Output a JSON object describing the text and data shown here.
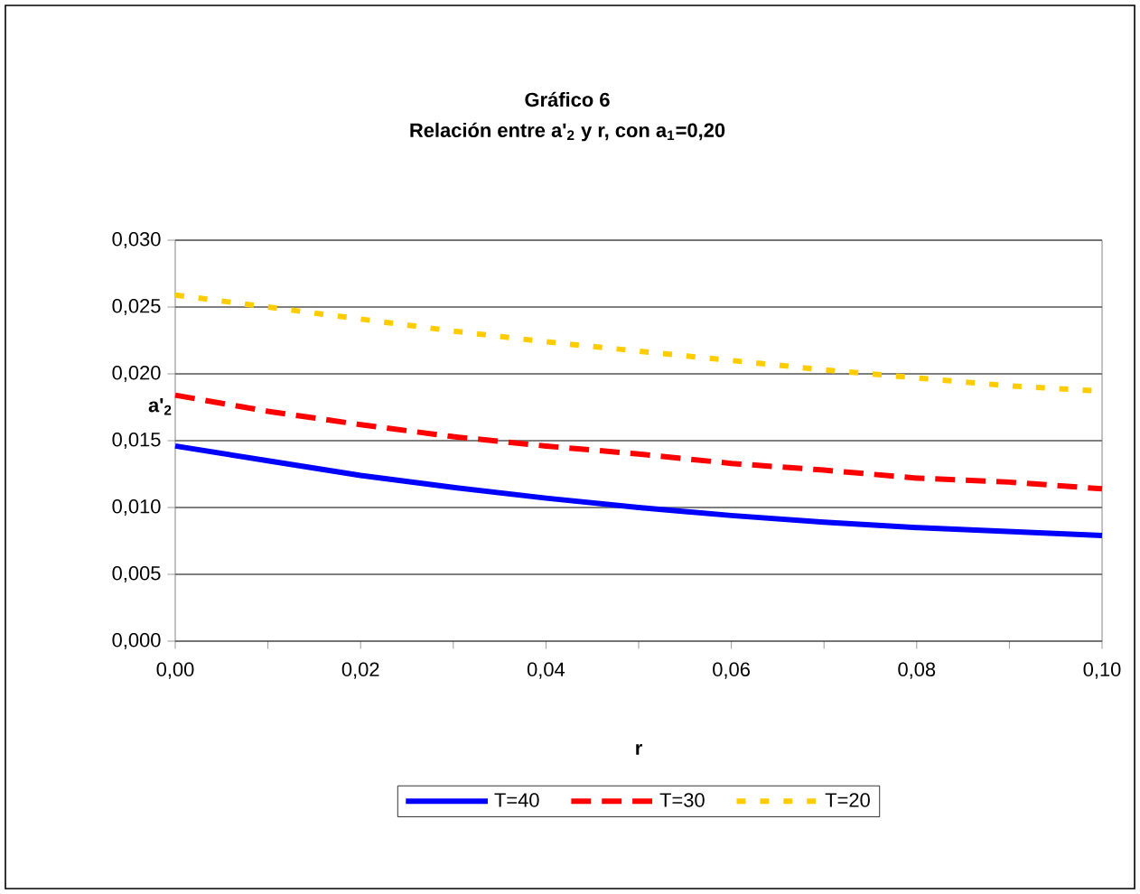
{
  "chart_data": {
    "type": "line",
    "title": "Gráfico 6",
    "subtitle": "Relación entre a'$_{2}$ y r, con a$_{1}$=0,20",
    "xlabel": "r",
    "ylabel": "a'$_{2}$",
    "x": [
      0.0,
      0.01,
      0.02,
      0.03,
      0.04,
      0.05,
      0.06,
      0.07,
      0.08,
      0.09,
      0.1
    ],
    "series": [
      {
        "name": "T=40",
        "color": "#0000ff",
        "line_style": "solid",
        "values": [
          0.0146,
          0.0135,
          0.0124,
          0.0115,
          0.0107,
          0.01,
          0.0094,
          0.0089,
          0.0085,
          0.0082,
          0.0079
        ]
      },
      {
        "name": "T=30",
        "color": "#ff0000",
        "line_style": "dashed",
        "values": [
          0.0184,
          0.0172,
          0.0162,
          0.0153,
          0.0146,
          0.014,
          0.0133,
          0.0128,
          0.0122,
          0.0119,
          0.0114
        ]
      },
      {
        "name": "T=20",
        "color": "#ffcc00",
        "line_style": "dotted",
        "values": [
          0.0259,
          0.025,
          0.0241,
          0.0232,
          0.0224,
          0.0217,
          0.021,
          0.0203,
          0.0197,
          0.0191,
          0.0187
        ]
      }
    ],
    "xlim": [
      0,
      0.1
    ],
    "ylim": [
      0,
      0.03
    ],
    "xticks": [
      {
        "value": 0,
        "label": "0,00"
      },
      {
        "value": 0.01,
        "label": null
      },
      {
        "value": 0.02,
        "label": "0,02"
      },
      {
        "value": 0.03,
        "label": null
      },
      {
        "value": 0.04,
        "label": "0,04"
      },
      {
        "value": 0.05,
        "label": null
      },
      {
        "value": 0.06,
        "label": "0,06"
      },
      {
        "value": 0.07,
        "label": null
      },
      {
        "value": 0.08,
        "label": "0,08"
      },
      {
        "value": 0.09,
        "label": null
      },
      {
        "value": 0.1,
        "label": "0,10"
      }
    ],
    "yticks": [
      {
        "value": 0,
        "label": "0,000"
      },
      {
        "value": 0.005,
        "label": "0,005"
      },
      {
        "value": 0.01,
        "label": "0,010"
      },
      {
        "value": 0.015,
        "label": "0,015"
      },
      {
        "value": 0.02,
        "label": "0,020"
      },
      {
        "value": 0.025,
        "label": "0,025"
      },
      {
        "value": 0.03,
        "label": "0,030"
      }
    ],
    "grid": "y",
    "legend": "bottom"
  }
}
